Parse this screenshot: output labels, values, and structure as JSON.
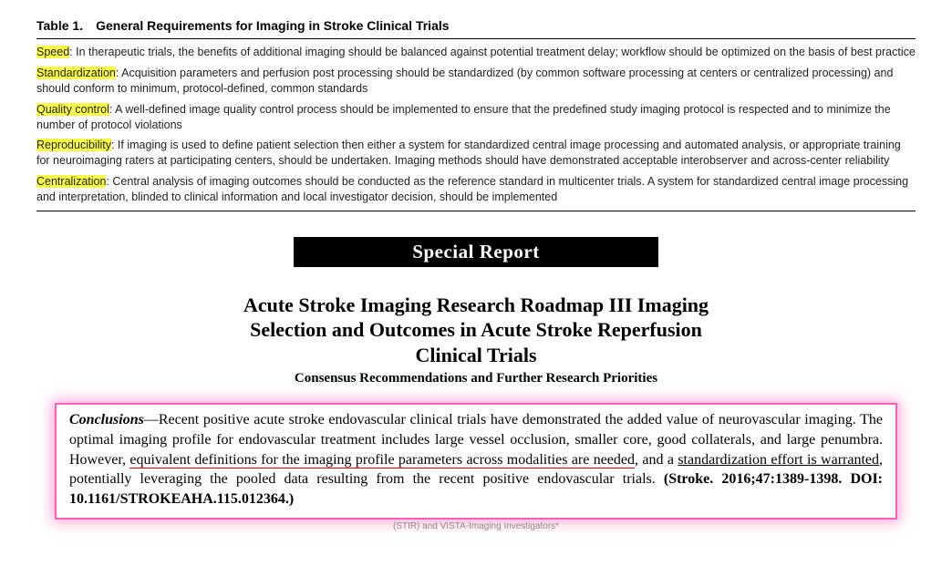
{
  "table": {
    "label": "Table 1.",
    "title": "General Requirements for Imaging in Stroke Clinical Trials",
    "rows": [
      {
        "term": "Speed",
        "desc": ": In therapeutic trials, the benefits of additional imaging should be balanced against potential treatment delay; workflow should be optimized on the basis of best practice"
      },
      {
        "term": "Standardization",
        "desc": ": Acquisition parameters and perfusion post processing should be standardized (by common software processing at centers or centralized processing) and should conform to minimum, protocol-defined, common standards"
      },
      {
        "term": "Quality control",
        "desc": ": A well-defined image quality control process should be implemented to ensure that the predefined study imaging protocol is respected and to minimize the number of protocol violations"
      },
      {
        "term": "Reproducibility",
        "desc": ": If imaging is used to define patient selection then either a system for standardized central image processing and automated analysis, or appropriate training for neuroimaging raters at participating centers, should be undertaken. Imaging methods should have demonstrated acceptable interobserver and across-center reliability"
      },
      {
        "term": "Centralization",
        "desc": ": Central analysis of imaging outcomes should be conducted as the reference standard in multicenter trials. A system for standardized central image processing and interpretation, blinded to clinical information and local investigator decision, should be implemented"
      }
    ]
  },
  "banner": "Special Report",
  "paper_title_l1": "Acute Stroke Imaging Research Roadmap III Imaging",
  "paper_title_l2": "Selection and Outcomes in Acute Stroke Reperfusion",
  "paper_title_l3": "Clinical Trials",
  "paper_sub": "Consensus Recommendations and Further Research Priorities",
  "concl": {
    "lead": "Conclusions",
    "dash": "—",
    "p1": "Recent positive acute stroke endovascular clinical trials have demonstrated the added value of neurovascular imaging. The optimal imaging profile for endovascular treatment includes large vessel occlusion, smaller core, good collaterals, and large penumbra. However, ",
    "u1": "equivalent definitions for the imaging profile parameters across modalities are needed",
    "p2": ", and a ",
    "u2": "standardization effort is warranted",
    "p3": ", potentially leveraging the pooled data resulting from the recent positive endovascular trials.  ",
    "cite": "(Stroke. 2016;47:1389-1398. DOI: 10.1161/STROKEAHA.115.012364.)"
  },
  "footer": "(STIR) and VISTA-Imaging Investigators*"
}
